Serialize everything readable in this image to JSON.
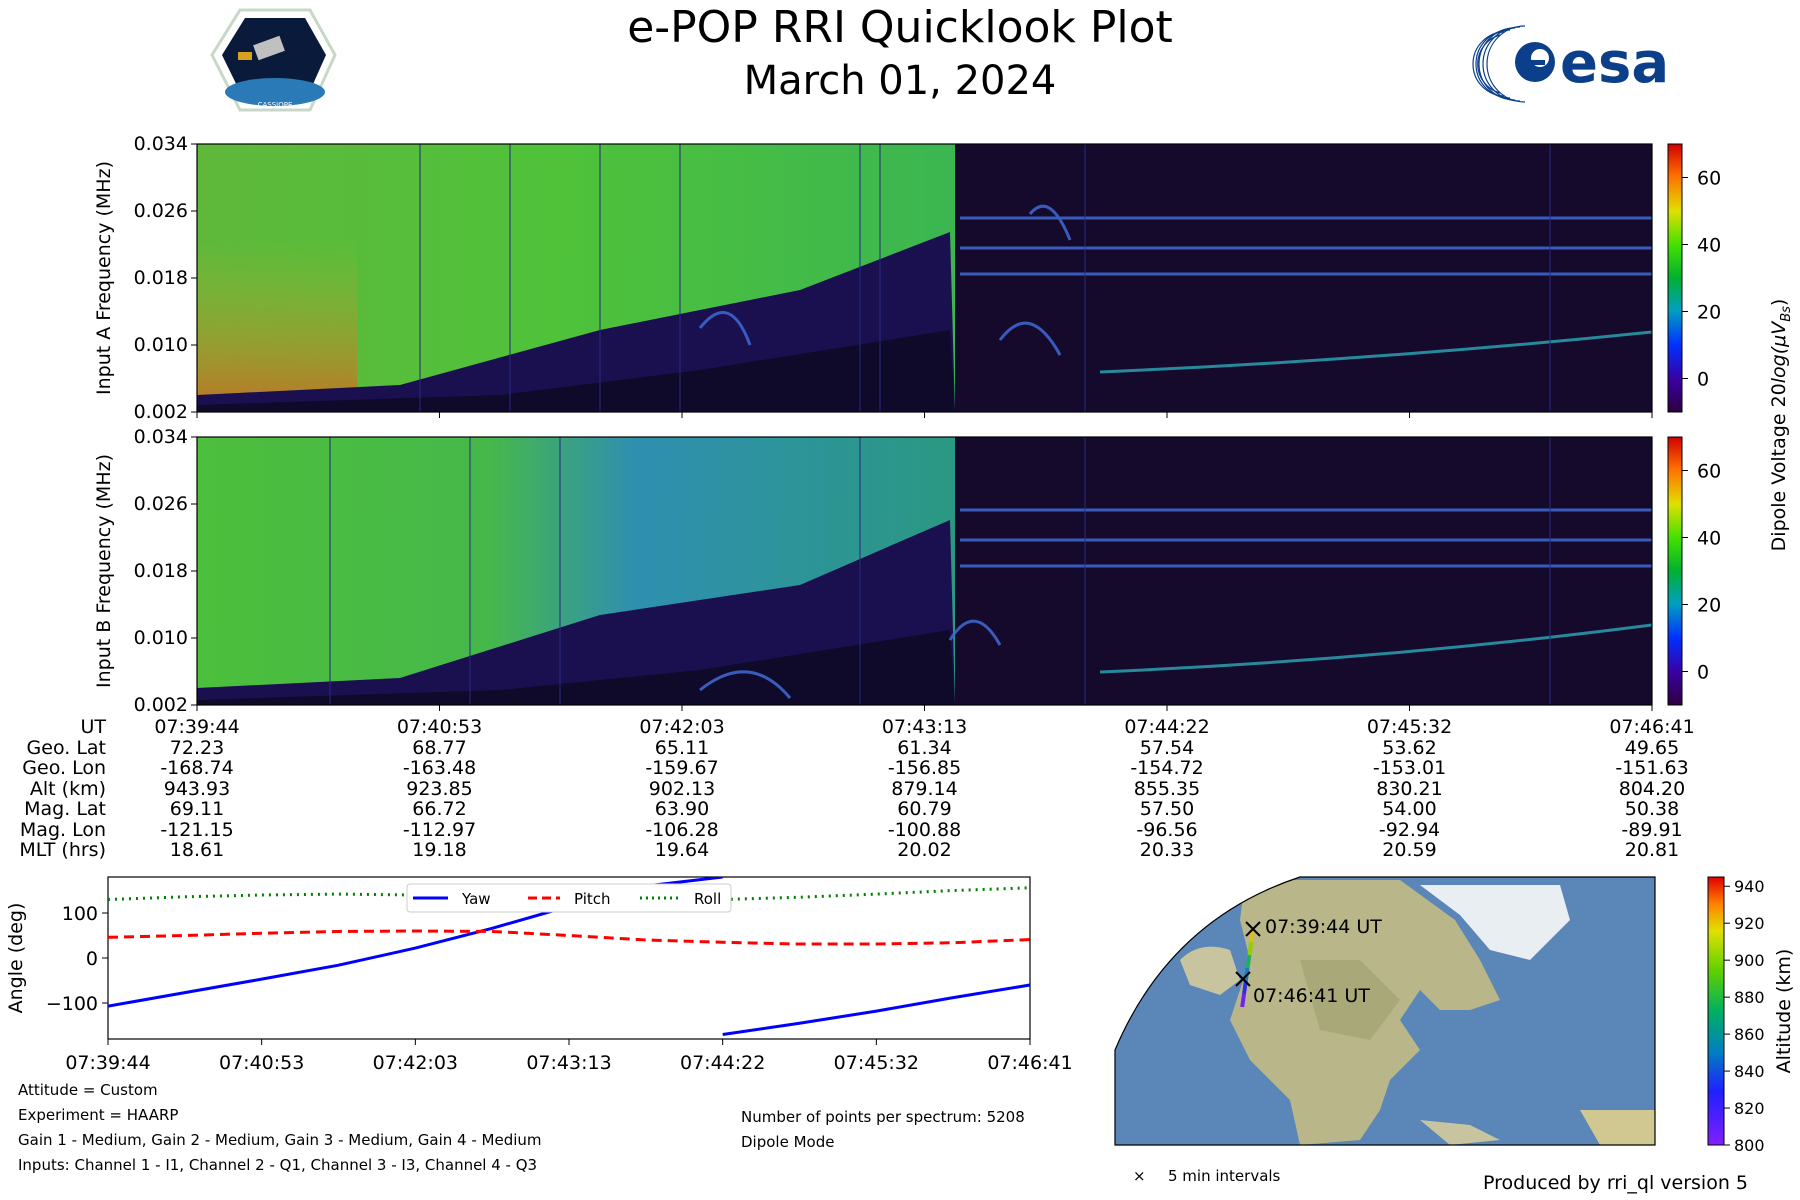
{
  "title": "e-POP RRI Quicklook Plot",
  "subtitle": "March 01, 2024",
  "logos": {
    "left": "CASSIOPE",
    "right": "esa"
  },
  "chart_data": [
    {
      "type": "heatmap",
      "panel": "Input A",
      "ylabel": "Input A Frequency (MHz)",
      "yticks": [
        "0.034",
        "0.026",
        "0.018",
        "0.010",
        "0.002"
      ],
      "ylim": [
        0.002,
        0.034
      ],
      "colorbar": {
        "ticks": [
          60,
          40,
          20,
          0
        ],
        "range": [
          -10,
          70
        ]
      }
    },
    {
      "type": "heatmap",
      "panel": "Input B",
      "ylabel": "Input B Frequency (MHz)",
      "yticks": [
        "0.034",
        "0.026",
        "0.018",
        "0.010",
        "0.002"
      ],
      "ylim": [
        0.002,
        0.034
      ],
      "colorbar": {
        "ticks": [
          60,
          40,
          20,
          0
        ],
        "range": [
          -10,
          70
        ]
      }
    },
    {
      "type": "line",
      "panel": "attitude",
      "ylabel": "Angle (deg)",
      "yticks": [
        100,
        0,
        -100
      ],
      "ylim": [
        -180,
        180
      ],
      "xticks": [
        "07:39:44",
        "07:40:53",
        "07:42:03",
        "07:43:13",
        "07:44:22",
        "07:45:32",
        "07:46:41"
      ],
      "x": [
        0,
        0.5,
        1,
        1.5,
        2,
        2.5,
        3,
        3.5,
        4,
        4.5,
        5,
        5.5,
        6
      ],
      "series": [
        {
          "name": "Yaw",
          "color": "#0000ff",
          "style": "solid",
          "values": [
            -107,
            -77,
            -47,
            -16,
            22,
            66,
            115,
            160,
            -170,
            -145,
            -118,
            -88,
            -60
          ]
        },
        {
          "name": "Pitch",
          "color": "#ff0000",
          "style": "dashed",
          "values": [
            46,
            50,
            55,
            59,
            60,
            59,
            50,
            40,
            35,
            31,
            31,
            34,
            41
          ]
        },
        {
          "name": "Roll",
          "color": "#008000",
          "style": "dotted",
          "values": [
            130,
            136,
            140,
            142,
            140,
            135,
            130,
            128,
            130,
            135,
            142,
            150,
            156
          ]
        }
      ]
    },
    {
      "type": "scatter",
      "panel": "map",
      "start_label": "07:39:44 UT",
      "end_label": "07:46:41 UT",
      "colorbar_label": "Altitude (km)",
      "colorbar_ticks": [
        940,
        920,
        900,
        880,
        860,
        840,
        820,
        800
      ],
      "legend": "5 min intervals"
    }
  ],
  "colorbar_label_prefix": "Dipole Voltage 20",
  "colorbar_label_log": "log",
  "colorbar_label_unit": "(μV",
  "colorbar_label_sub": "Bs",
  "colorbar_label_close": ")",
  "ephemeris": {
    "labels": [
      "UT",
      "Geo. Lat",
      "Geo. Lon",
      "Alt (km)",
      "Mag. Lat",
      "Mag. Lon",
      "MLT (hrs)"
    ],
    "columns": [
      [
        "07:39:44",
        "72.23",
        "-168.74",
        "943.93",
        "69.11",
        "-121.15",
        "18.61"
      ],
      [
        "07:40:53",
        "68.77",
        "-163.48",
        "923.85",
        "66.72",
        "-112.97",
        "19.18"
      ],
      [
        "07:42:03",
        "65.11",
        "-159.67",
        "902.13",
        "63.90",
        "-106.28",
        "19.64"
      ],
      [
        "07:43:13",
        "61.34",
        "-156.85",
        "879.14",
        "60.79",
        "-100.88",
        "20.02"
      ],
      [
        "07:44:22",
        "57.54",
        "-154.72",
        "855.35",
        "57.50",
        "-96.56",
        "20.33"
      ],
      [
        "07:45:32",
        "53.62",
        "-153.01",
        "830.21",
        "54.00",
        "-92.94",
        "20.59"
      ],
      [
        "07:46:41",
        "49.65",
        "-151.63",
        "804.20",
        "50.38",
        "-89.91",
        "20.81"
      ]
    ]
  },
  "info": {
    "attitude": "Attitude = Custom",
    "experiment": "Experiment = HAARP",
    "gains": "Gain 1 - Medium, Gain 2 - Medium, Gain 3 - Medium, Gain 4 - Medium",
    "inputs": "Inputs: Channel 1 - I1, Channel 2 - Q1, Channel 3 - I3, Channel 4 - Q3",
    "points": "Number of points per spectrum: 5208",
    "mode": "Dipole Mode",
    "produced": "Produced by rri_ql version 5"
  },
  "colors": {
    "background_dark": "#1a0a2e",
    "spectrum_green": "#3cbf3c",
    "spectrum_blue": "#1e50c8",
    "yaw": "#0000ff",
    "pitch": "#ff0000",
    "roll": "#008000"
  }
}
